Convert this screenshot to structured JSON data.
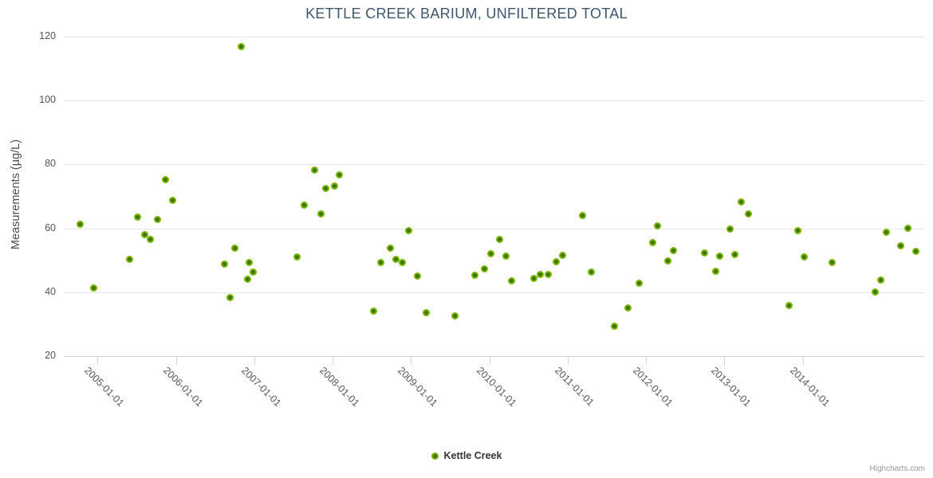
{
  "title": "KETTLE CREEK BARIUM, UNFILTERED TOTAL",
  "legend": {
    "label": "Kettle Creek"
  },
  "credits": "Highcharts.com",
  "colors": {
    "marker_outer": "#76b600",
    "marker_center": "#3c7000",
    "gridline": "#e6e6e6",
    "axis_line": "#ccd6eb",
    "title_text": "#3e576f",
    "tick_text": "#555555",
    "legend_text": "#333333",
    "credits_text": "#999999"
  },
  "chart_data": {
    "type": "scatter",
    "title": "KETTLE CREEK BARIUM, UNFILTERED TOTAL",
    "xlabel": "",
    "ylabel": "Measurements (µg/L)",
    "xlim": [
      2004.57,
      2015.56
    ],
    "ylim": [
      20,
      120
    ],
    "grid": true,
    "legend_position": "bottom",
    "y_ticks": [
      20,
      40,
      60,
      80,
      100,
      120
    ],
    "x_ticks": [
      {
        "x": 2005,
        "label": "2005-01-01"
      },
      {
        "x": 2006,
        "label": "2006-01-01"
      },
      {
        "x": 2007,
        "label": "2007-01-01"
      },
      {
        "x": 2008,
        "label": "2008-01-01"
      },
      {
        "x": 2009,
        "label": "2009-01-01"
      },
      {
        "x": 2010,
        "label": "2010-01-01"
      },
      {
        "x": 2011,
        "label": "2011-01-01"
      },
      {
        "x": 2012,
        "label": "2012-01-01"
      },
      {
        "x": 2013,
        "label": "2013-01-01"
      },
      {
        "x": 2014,
        "label": "2014-01-01"
      }
    ],
    "series": [
      {
        "name": "Kettle Creek",
        "color": "#76b600",
        "points": [
          [
            2004.78,
            61.3
          ],
          [
            2004.95,
            41.3
          ],
          [
            2005.41,
            50.3
          ],
          [
            2005.51,
            63.5
          ],
          [
            2005.6,
            58.0
          ],
          [
            2005.67,
            56.5
          ],
          [
            2005.77,
            62.8
          ],
          [
            2005.87,
            75.2
          ],
          [
            2005.96,
            68.7
          ],
          [
            2006.62,
            48.9
          ],
          [
            2006.69,
            38.3
          ],
          [
            2006.75,
            53.7
          ],
          [
            2006.83,
            117.0
          ],
          [
            2006.92,
            44.0
          ],
          [
            2006.94,
            49.3
          ],
          [
            2006.99,
            46.2
          ],
          [
            2007.55,
            51.0
          ],
          [
            2007.64,
            67.2
          ],
          [
            2007.77,
            78.3
          ],
          [
            2007.85,
            64.4
          ],
          [
            2007.91,
            72.6
          ],
          [
            2008.02,
            73.3
          ],
          [
            2008.09,
            76.8
          ],
          [
            2008.52,
            34.2
          ],
          [
            2008.62,
            49.2
          ],
          [
            2008.74,
            53.8
          ],
          [
            2008.81,
            50.2
          ],
          [
            2008.89,
            49.3
          ],
          [
            2008.97,
            59.4
          ],
          [
            2009.08,
            45.1
          ],
          [
            2009.19,
            33.7
          ],
          [
            2009.56,
            32.6
          ],
          [
            2009.82,
            45.4
          ],
          [
            2009.94,
            47.4
          ],
          [
            2010.02,
            52.0
          ],
          [
            2010.13,
            56.6
          ],
          [
            2010.21,
            51.2
          ],
          [
            2010.28,
            43.6
          ],
          [
            2010.57,
            44.4
          ],
          [
            2010.65,
            45.6
          ],
          [
            2010.75,
            45.6
          ],
          [
            2010.85,
            49.6
          ],
          [
            2010.93,
            51.6
          ],
          [
            2011.19,
            64.1
          ],
          [
            2011.3,
            46.2
          ],
          [
            2011.6,
            29.4
          ],
          [
            2011.77,
            35.0
          ],
          [
            2011.91,
            42.8
          ],
          [
            2012.09,
            55.6
          ],
          [
            2012.15,
            60.7
          ],
          [
            2012.28,
            49.9
          ],
          [
            2012.35,
            53.1
          ],
          [
            2012.75,
            52.4
          ],
          [
            2012.89,
            46.6
          ],
          [
            2012.94,
            51.3
          ],
          [
            2013.07,
            59.8
          ],
          [
            2013.13,
            51.9
          ],
          [
            2013.21,
            68.3
          ],
          [
            2013.31,
            64.6
          ],
          [
            2013.83,
            35.9
          ],
          [
            2013.94,
            59.4
          ],
          [
            2014.02,
            51.1
          ],
          [
            2014.37,
            49.3
          ],
          [
            2014.92,
            40.0
          ],
          [
            2015.0,
            43.7
          ],
          [
            2015.07,
            58.7
          ],
          [
            2015.25,
            54.5
          ],
          [
            2015.34,
            60.1
          ],
          [
            2015.44,
            52.7
          ]
        ]
      }
    ]
  }
}
